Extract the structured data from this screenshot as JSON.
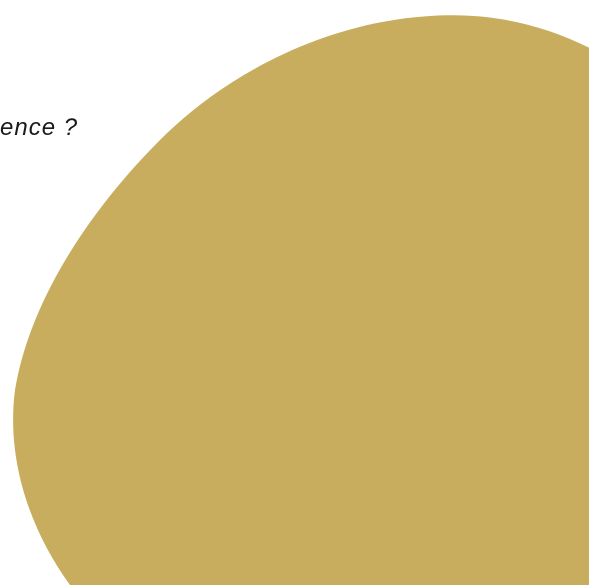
{
  "background_color": "#ffffff",
  "shape": {
    "icon": "ellipse-shape",
    "color": "#c8ad5e"
  },
  "text": {
    "fragment": "ence ?",
    "color": "#1a1a1a"
  }
}
